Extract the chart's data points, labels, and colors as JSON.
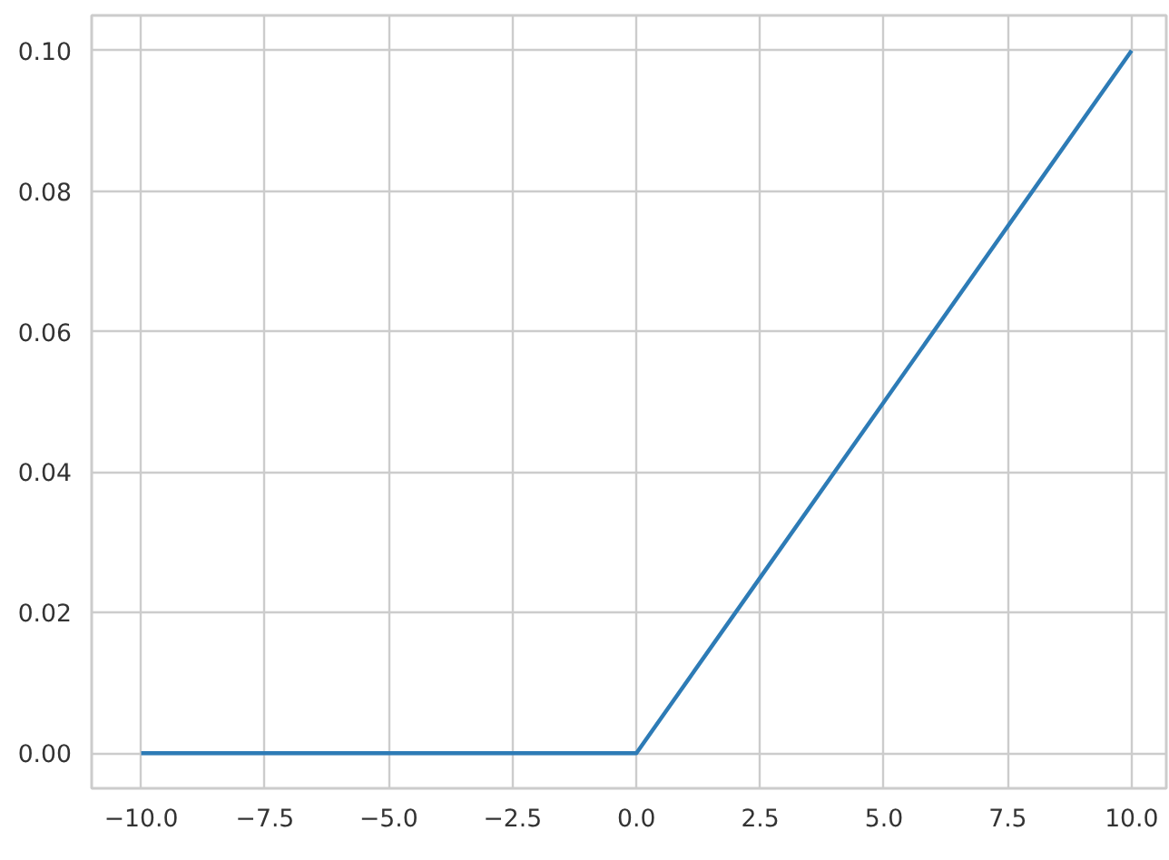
{
  "chart_data": {
    "type": "line",
    "x": [
      -10,
      -5,
      -0.2,
      0,
      0.2,
      2.5,
      5,
      7.5,
      10
    ],
    "series": [
      {
        "color": "#2d7bb6",
        "values": [
          0,
          0,
          0,
          0,
          0.002,
          0.025,
          0.05,
          0.075,
          0.1
        ]
      }
    ],
    "xlim": [
      -11,
      10.7
    ],
    "ylim": [
      -0.005,
      0.105
    ],
    "xticks": [
      {
        "value": -10,
        "label": "−10.0"
      },
      {
        "value": -7.5,
        "label": "−7.5"
      },
      {
        "value": -5,
        "label": "−5.0"
      },
      {
        "value": -2.5,
        "label": "−2.5"
      },
      {
        "value": 0,
        "label": "0.0"
      },
      {
        "value": 2.5,
        "label": "2.5"
      },
      {
        "value": 5,
        "label": "5.0"
      },
      {
        "value": 7.5,
        "label": "7.5"
      },
      {
        "value": 10,
        "label": "10.0"
      }
    ],
    "yticks": [
      {
        "value": 0,
        "label": "0.00"
      },
      {
        "value": 0.02,
        "label": "0.02"
      },
      {
        "value": 0.04,
        "label": "0.04"
      },
      {
        "value": 0.06,
        "label": "0.06"
      },
      {
        "value": 0.08,
        "label": "0.08"
      },
      {
        "value": 0.1,
        "label": "0.10"
      }
    ],
    "grid": true
  }
}
